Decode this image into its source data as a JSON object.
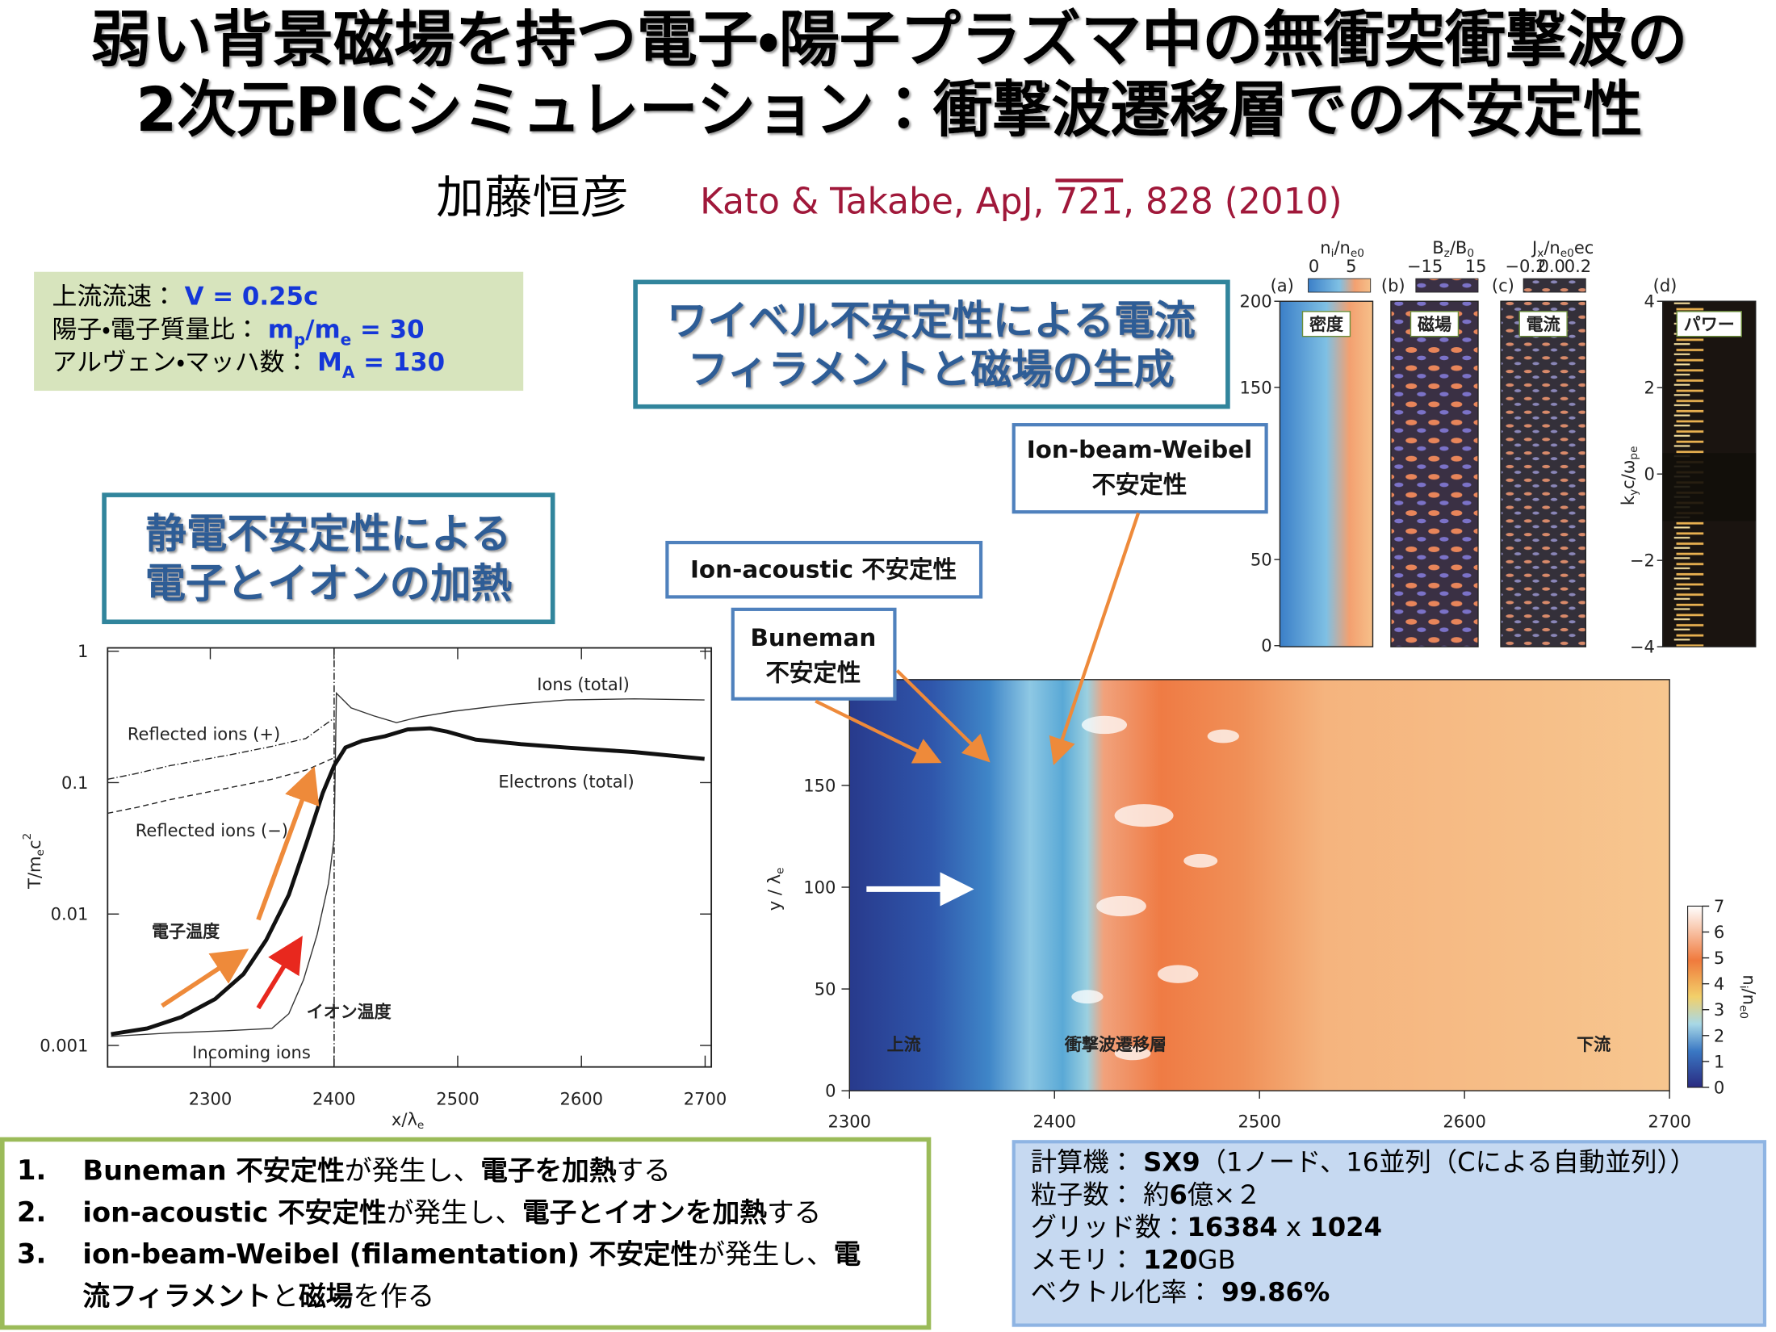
{
  "title": {
    "line1": "弱い背景磁場を持つ電子・陽子プラズマ中の無衝突衝撃波の",
    "line2": "2次元PICシミュレーション：衝撃波遷移層での不安定性"
  },
  "author": "加藤恒彦",
  "citation": [
    {
      "text": "Kato & Takabe, ApJ, "
    },
    {
      "text": "721",
      "underline": true
    },
    {
      "text": ", 828 (2010)"
    }
  ],
  "parameters": [
    [
      {
        "text": "上流流速： "
      },
      {
        "text": "V = 0.25c",
        "bold": true
      }
    ],
    [
      {
        "text": "陽子・電子質量比： "
      },
      {
        "text": "m",
        "bold": true
      },
      {
        "text": "p",
        "bold": true,
        "sub": true
      },
      {
        "text": "/m",
        "bold": true
      },
      {
        "text": "e",
        "bold": true,
        "sub": true
      },
      {
        "text": " = 30",
        "bold": true
      }
    ],
    [
      {
        "text": "アルヴェン・マッハ数： "
      },
      {
        "text": "M",
        "bold": true
      },
      {
        "text": "A",
        "bold": true,
        "sub": true
      },
      {
        "text": " = 130",
        "bold": true
      }
    ]
  ],
  "callouts": {
    "weibel": [
      "ワイベル不安定性による電流",
      "フィラメントと磁場の生成"
    ],
    "electrostatic": [
      "静電不安定性による",
      "電子とイオンの加熱"
    ],
    "ion_beam_weibel": [
      "Ion-beam-Weibel",
      "不安定性"
    ],
    "ion_acoustic": [
      "Ion-acoustic 不安定性"
    ],
    "buneman": [
      "Buneman",
      "不安定性"
    ]
  },
  "temperature_plot": {
    "xlim": [
      2217,
      2705
    ],
    "ylim": [
      0.000686,
      1.06
    ],
    "log_y": true,
    "xticks": [
      2300,
      2400,
      2500,
      2600,
      2700
    ],
    "yticks": [
      1,
      0.1,
      0.01,
      0.001
    ],
    "xlabel": [
      {
        "text": "x/λ"
      },
      {
        "text": "e",
        "sub": true
      }
    ],
    "ylabel": [
      {
        "text": "T/m"
      },
      {
        "text": "e",
        "sub": true
      },
      {
        "text": "c"
      },
      {
        "text": "2",
        "sup": true
      }
    ],
    "curve_labels": [
      "Ions (total)",
      "Reflected ions (+)",
      "Electrons (total)",
      "Reflected ions (−)",
      "Incoming ions"
    ],
    "annotations": [
      "電子温度",
      "イオン温度"
    ]
  },
  "density_map": {
    "xlim": [
      2300,
      2700
    ],
    "ylim": [
      0,
      202
    ],
    "xticks": [
      2300,
      2400,
      2500,
      2600,
      2700
    ],
    "yticks": [
      0,
      50,
      100,
      150
    ],
    "ylabel": [
      {
        "text": "y / λ"
      },
      {
        "text": "e",
        "sub": true
      }
    ],
    "clim": [
      0,
      7
    ],
    "cticks": [
      0,
      1,
      2,
      3,
      4,
      5,
      6,
      7
    ],
    "clabel": [
      {
        "text": "n"
      },
      {
        "text": "i",
        "sub": true
      },
      {
        "text": "/n"
      },
      {
        "text": "e0",
        "sub": true
      }
    ],
    "regions": [
      "上流",
      "衝撃波遷移層",
      "下流"
    ]
  },
  "panels": {
    "ylim": [
      0,
      200
    ],
    "yticks": [
      0,
      50,
      150,
      200
    ],
    "dlim": [
      -4,
      4
    ],
    "dticks": [
      4,
      2,
      0,
      {
        "value": -2,
        "label": "−2"
      },
      {
        "value": -4,
        "label": "−4"
      }
    ],
    "dlabel": [
      {
        "text": "k"
      },
      {
        "text": "y",
        "sub": true
      },
      {
        "text": "c/ω"
      },
      {
        "text": "pe",
        "sub": true
      }
    ],
    "items": [
      {
        "letter": "(a)",
        "name": "密度",
        "clabel": [
          {
            "text": "n"
          },
          {
            "text": "i",
            "sub": true
          },
          {
            "text": "/n"
          },
          {
            "text": "e0",
            "sub": true
          }
        ],
        "cticks": [
          "0",
          "5"
        ]
      },
      {
        "letter": "(b)",
        "name": "磁場",
        "clabel": [
          {
            "text": "B"
          },
          {
            "text": "z",
            "sub": true
          },
          {
            "text": "/B"
          },
          {
            "text": "0",
            "sub": true
          }
        ],
        "cticks": [
          "−15",
          "15"
        ]
      },
      {
        "letter": "(c)",
        "name": "電流",
        "clabel": [
          {
            "text": "J"
          },
          {
            "text": "x",
            "sub": true
          },
          {
            "text": "/n"
          },
          {
            "text": "e0",
            "sub": true
          },
          {
            "text": "ec"
          }
        ],
        "cticks": [
          "−0.2",
          "0.0",
          "0.2"
        ]
      },
      {
        "letter": "(d)",
        "name": "パワー"
      }
    ]
  },
  "bullets": [
    {
      "number": "1.",
      "lines": [
        [
          {
            "text": "Buneman 不安定性",
            "bold": true
          },
          {
            "text": "が発生し、"
          },
          {
            "text": "電子を加熱",
            "bold": true
          },
          {
            "text": "する"
          }
        ]
      ]
    },
    {
      "number": "2.",
      "lines": [
        [
          {
            "text": "ion-acoustic 不安定性",
            "bold": true
          },
          {
            "text": "が発生し、"
          },
          {
            "text": "電子とイオンを加熱",
            "bold": true
          },
          {
            "text": "する"
          }
        ]
      ]
    },
    {
      "number": "3.",
      "lines": [
        [
          {
            "text": "ion-beam-Weibel (filamentation) 不安定性",
            "bold": true
          },
          {
            "text": "が発生し、"
          },
          {
            "text": "電",
            "bold": true
          }
        ],
        [
          {
            "text": "流フィラメント",
            "bold": true
          },
          {
            "text": "と"
          },
          {
            "text": "磁場",
            "bold": true
          },
          {
            "text": "を作る"
          }
        ]
      ]
    }
  ],
  "specs": [
    [
      {
        "text": "計算機： "
      },
      {
        "text": "SX9",
        "bold": true
      },
      {
        "text": "（1ノード、16並列（Cによる自動並列））"
      }
    ],
    [
      {
        "text": "粒子数： 約"
      },
      {
        "text": "6",
        "bold": true
      },
      {
        "text": "億×２"
      }
    ],
    [
      {
        "text": "グリッド数："
      },
      {
        "text": "16384",
        "bold": true
      },
      {
        "text": " x "
      },
      {
        "text": "1024",
        "bold": true
      }
    ],
    [
      {
        "text": "メモリ： "
      },
      {
        "text": "120",
        "bold": true
      },
      {
        "text": "GB"
      }
    ],
    [
      {
        "text": "ベクトル化率： "
      },
      {
        "text": "99.86%",
        "bold": true
      }
    ]
  ]
}
